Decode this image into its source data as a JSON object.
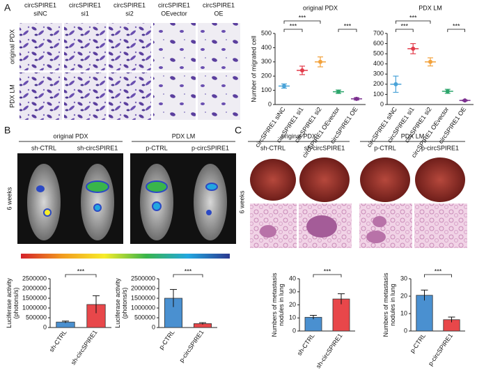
{
  "panel_labels": [
    "A",
    "B",
    "C"
  ],
  "panel_a": {
    "columns": [
      [
        "circSPIRE1",
        "siNC"
      ],
      [
        "circSPIRE1",
        "si1"
      ],
      [
        "circSPIRE1",
        "si2"
      ],
      [
        "circSPIRE1",
        "OEvector"
      ],
      [
        "circSPIRE1",
        "OE"
      ]
    ],
    "rows": [
      "original PDX",
      "PDX LM"
    ]
  },
  "panel_b": {
    "groups": [
      {
        "title": "original PDX",
        "columns": [
          "sh-CTRL",
          "sh-circSPIRE1"
        ]
      },
      {
        "title": "PDX LM",
        "columns": [
          "p-CTRL",
          "p-circSPIRE1"
        ]
      }
    ],
    "time": "6 weeks"
  },
  "panel_c": {
    "groups": [
      {
        "title": "original PDX",
        "columns": [
          "sh-CTRL",
          "sh-circSPIRE1"
        ]
      },
      {
        "title": "PDX LM",
        "columns": [
          "p-CTRL",
          "p-circSPIRE1"
        ]
      }
    ],
    "time": "6 weeks"
  },
  "chart_data": [
    {
      "type": "dot",
      "title": "original PDX",
      "ylabel": [
        "Number of migrated cell"
      ],
      "categories": [
        "circSPIRE1 siNC",
        "circSPIRE1 si1",
        "circSPIRE1 si2",
        "circSPIRE1 OEvector",
        "circSPIRE1 OE"
      ],
      "values": [
        130,
        240,
        300,
        90,
        40
      ],
      "errors": [
        15,
        30,
        35,
        12,
        8
      ],
      "colors": [
        "#4aa3d8",
        "#e23b4a",
        "#f2a13b",
        "#2ca56b",
        "#7b2f8f"
      ],
      "ylim": [
        0,
        500
      ],
      "yticks": [
        0,
        100,
        200,
        300,
        400,
        500
      ],
      "significance": [
        {
          "between": [
            "circSPIRE1 siNC",
            "circSPIRE1 si1"
          ],
          "label": "***"
        },
        {
          "between": [
            "circSPIRE1 siNC",
            "circSPIRE1 si2"
          ],
          "label": "***"
        },
        {
          "between": [
            "circSPIRE1 OEvector",
            "circSPIRE1 OE"
          ],
          "label": "***"
        }
      ]
    },
    {
      "type": "dot",
      "title": "PDX LM",
      "categories": [
        "circSPIRE1 siNC",
        "circSPIRE1 si1",
        "circSPIRE1 si2",
        "circSPIRE1 OEvector",
        "circSPIRE1 OE"
      ],
      "values": [
        200,
        550,
        420,
        130,
        40
      ],
      "errors": [
        80,
        50,
        40,
        20,
        5
      ],
      "colors": [
        "#4aa3d8",
        "#e23b4a",
        "#f2a13b",
        "#2ca56b",
        "#7b2f8f"
      ],
      "ylim": [
        0,
        700
      ],
      "yticks": [
        0,
        100,
        200,
        300,
        400,
        500,
        600,
        700
      ],
      "significance": [
        {
          "between": [
            "circSPIRE1 siNC",
            "circSPIRE1 si1"
          ],
          "label": "***"
        },
        {
          "between": [
            "circSPIRE1 siNC",
            "circSPIRE1 si2"
          ],
          "label": "***"
        },
        {
          "between": [
            "circSPIRE1 OEvector",
            "circSPIRE1 OE"
          ],
          "label": "***"
        }
      ]
    },
    {
      "type": "bar",
      "ylabel": [
        "Luciferase activity",
        "(photons/s)"
      ],
      "categories": [
        "sh-CTRL",
        "sh-circSPIRE1"
      ],
      "values": [
        280000,
        1180000
      ],
      "errors": [
        50000,
        450000
      ],
      "colors": [
        "#4a90d0",
        "#e8474a"
      ],
      "ylim": [
        0,
        2500000
      ],
      "yticks": [
        0,
        500000,
        1000000,
        1500000,
        2000000,
        2500000
      ],
      "significance": [
        {
          "between": [
            "sh-CTRL",
            "sh-circSPIRE1"
          ],
          "label": "***"
        }
      ]
    },
    {
      "type": "bar",
      "ylabel": [
        "Luciferase activity",
        "(photons/s)"
      ],
      "categories": [
        "p-CTRL",
        "p-circSPIRE1"
      ],
      "values": [
        1500000,
        200000
      ],
      "errors": [
        450000,
        50000
      ],
      "colors": [
        "#4a90d0",
        "#e8474a"
      ],
      "ylim": [
        0,
        2500000
      ],
      "yticks": [
        0,
        500000,
        1000000,
        1500000,
        2000000,
        2500000
      ],
      "significance": [
        {
          "between": [
            "p-CTRL",
            "p-circSPIRE1"
          ],
          "label": "***"
        }
      ]
    },
    {
      "type": "bar",
      "ylabel": [
        "Numbers of metastasis",
        "nodules in lung"
      ],
      "categories": [
        "sh-CTRL",
        "sh-circSPIRE1"
      ],
      "values": [
        10.5,
        24.5
      ],
      "errors": [
        1.5,
        4
      ],
      "colors": [
        "#4a90d0",
        "#e8474a"
      ],
      "ylim": [
        0,
        40
      ],
      "yticks": [
        0,
        10,
        20,
        30,
        40
      ],
      "significance": [
        {
          "between": [
            "sh-CTRL",
            "sh-circSPIRE1"
          ],
          "label": "***"
        }
      ]
    },
    {
      "type": "bar",
      "ylabel": [
        "Numbers of metastasis",
        "nodules in lung"
      ],
      "categories": [
        "p-CTRL",
        "p-circSPIRE1"
      ],
      "values": [
        20.5,
        6.5
      ],
      "errors": [
        3,
        1.5
      ],
      "colors": [
        "#4a90d0",
        "#e8474a"
      ],
      "ylim": [
        0,
        30
      ],
      "yticks": [
        0,
        10,
        20,
        30
      ],
      "significance": [
        {
          "between": [
            "p-CTRL",
            "p-circSPIRE1"
          ],
          "label": "***"
        }
      ]
    }
  ]
}
